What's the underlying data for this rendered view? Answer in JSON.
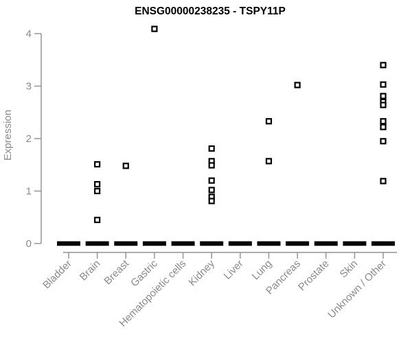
{
  "chart_data": {
    "type": "scatter",
    "title": "ENSG00000238235 - TSPY11P",
    "xlabel": "",
    "ylabel": "Expression",
    "ylim": [
      0,
      4.1
    ],
    "yticks": [
      0,
      1,
      2,
      3,
      4
    ],
    "grid": false,
    "legend": false,
    "marker_style": "small open black square",
    "zero_cluster_style": "thick black horizontal dash at y=0 for every category",
    "categories": [
      "Bladder",
      "Brain",
      "Breast",
      "Gastric",
      "Hematopoietic cells",
      "Kidney",
      "Liver",
      "Lung",
      "Pancreas",
      "Prostate",
      "Skin",
      "Unknown / Other"
    ],
    "series": [
      {
        "category": "Bladder",
        "nonzero_points": [],
        "zero_cluster": true
      },
      {
        "category": "Brain",
        "nonzero_points": [
          1.51,
          1.13,
          1.0,
          0.45
        ],
        "zero_cluster": true
      },
      {
        "category": "Breast",
        "nonzero_points": [
          1.48
        ],
        "zero_cluster": true
      },
      {
        "category": "Gastric",
        "nonzero_points": [
          4.09
        ],
        "zero_cluster": true
      },
      {
        "category": "Hematopoietic cells",
        "nonzero_points": [],
        "zero_cluster": true
      },
      {
        "category": "Kidney",
        "nonzero_points": [
          1.81,
          1.57,
          1.49,
          1.2,
          1.02,
          0.89,
          0.81
        ],
        "zero_cluster": true
      },
      {
        "category": "Liver",
        "nonzero_points": [],
        "zero_cluster": true
      },
      {
        "category": "Lung",
        "nonzero_points": [
          2.33,
          1.57
        ],
        "zero_cluster": true
      },
      {
        "category": "Pancreas",
        "nonzero_points": [
          3.02
        ],
        "zero_cluster": true
      },
      {
        "category": "Prostate",
        "nonzero_points": [],
        "zero_cluster": true
      },
      {
        "category": "Skin",
        "nonzero_points": [],
        "zero_cluster": true
      },
      {
        "category": "Unknown / Other",
        "nonzero_points": [
          3.4,
          3.03,
          2.81,
          2.7,
          2.64,
          2.33,
          2.22,
          1.95,
          1.19
        ],
        "zero_cluster": true
      }
    ],
    "colors": {
      "marker": "#000000",
      "zero_dash": "#000000",
      "axis_line": "#8f8f8f",
      "axis_text": "#8a8a8a",
      "title": "#000000",
      "background": "#ffffff"
    }
  }
}
